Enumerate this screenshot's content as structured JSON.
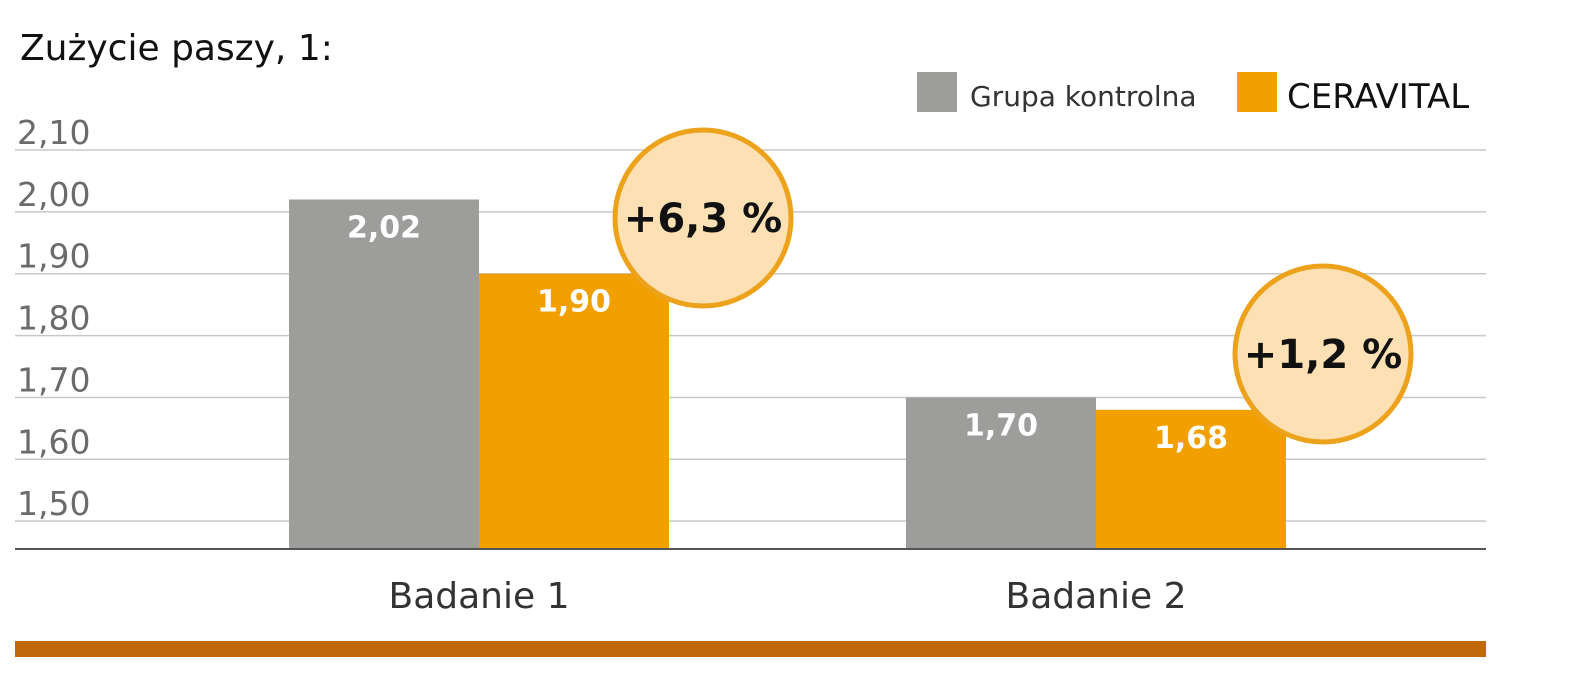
{
  "chart_data": {
    "type": "bar",
    "title": "Zużycie paszy, 1:",
    "categories": [
      "Badanie 1",
      "Badanie 2"
    ],
    "series": [
      {
        "name": "Grupa kontrolna",
        "values": [
          2.02,
          1.7
        ],
        "labels": [
          "2,02",
          "1,70"
        ]
      },
      {
        "name": "CERAVITAL",
        "values": [
          1.9,
          1.68
        ],
        "labels": [
          "1,90",
          "1,68"
        ]
      }
    ],
    "ylim": [
      1.455,
      2.1
    ],
    "yticks": [
      2.1,
      2.0,
      1.9,
      1.8,
      1.7,
      1.6,
      1.5
    ],
    "ytick_labels": [
      "2,10",
      "2,00",
      "1,90",
      "1,80",
      "1,70",
      "1,60",
      "1,50"
    ],
    "annotations": [
      "+6,3 %",
      "+1,2 %"
    ],
    "grid": true,
    "legend_position": "top-right"
  },
  "colors": {
    "control": "#9d9d9b",
    "ceravital": "#f2a000",
    "badge_fill": "#fde0b3",
    "badge_stroke": "#eca21b",
    "footer_bar": "#c0690b"
  }
}
